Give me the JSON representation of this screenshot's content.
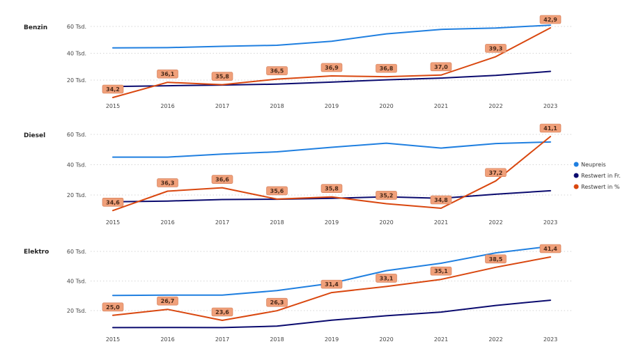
{
  "chart_data": [
    {
      "type": "line",
      "title": "Benzin",
      "categories": [
        "2015",
        "2016",
        "2017",
        "2018",
        "2019",
        "2020",
        "2021",
        "2022",
        "2023"
      ],
      "y_ticks": [
        "20 Tsd.",
        "40 Tsd.",
        "60 Tsd."
      ],
      "ylim": [
        0,
        66
      ],
      "series": [
        {
          "name": "Neupreis",
          "color": "#1f7fe0",
          "values": [
            44,
            44.2,
            45.2,
            46,
            49,
            54.5,
            57.8,
            58.8,
            61
          ]
        },
        {
          "name": "Restwert in Fr.",
          "color": "#0a0a6e",
          "values": [
            15.2,
            15.8,
            16.3,
            17,
            18.5,
            20.2,
            21.5,
            23.5,
            26.5
          ]
        },
        {
          "name": "Restwert in %",
          "color": "#d9470f",
          "values": [
            34.2,
            36.1,
            35.8,
            36.5,
            36.9,
            36.8,
            37.0,
            39.3,
            42.9
          ]
        }
      ],
      "data_labels": [
        "34,2",
        "36,1",
        "35,8",
        "36,5",
        "36,9",
        "36,8",
        "37,0",
        "39,3",
        "42,9"
      ]
    },
    {
      "type": "line",
      "title": "Diesel",
      "categories": [
        "2015",
        "2016",
        "2017",
        "2018",
        "2019",
        "2020",
        "2021",
        "2022",
        "2023"
      ],
      "y_ticks": [
        "20 Tsd.",
        "40 Tsd.",
        "60 Tsd."
      ],
      "ylim": [
        0,
        66
      ],
      "series": [
        {
          "name": "Neupreis",
          "color": "#1f7fe0",
          "values": [
            45,
            45,
            47,
            48.5,
            51.5,
            54.2,
            51,
            54,
            55
          ]
        },
        {
          "name": "Restwert in Fr.",
          "color": "#0a0a6e",
          "values": [
            15.5,
            16,
            17,
            17.2,
            17.8,
            18.8,
            17.8,
            20.5,
            22.8
          ]
        },
        {
          "name": "Restwert in %",
          "color": "#d9470f",
          "values": [
            34.6,
            36.3,
            36.6,
            35.6,
            35.8,
            35.2,
            34.8,
            37.2,
            41.1
          ]
        }
      ],
      "data_labels": [
        "34,6",
        "36,3",
        "36,6",
        "35,6",
        "35,8",
        "35,2",
        "34,8",
        "37,2",
        "41,1"
      ]
    },
    {
      "type": "line",
      "title": "Elektro",
      "categories": [
        "2015",
        "2016",
        "2017",
        "2018",
        "2019",
        "2020",
        "2021",
        "2022",
        "2023"
      ],
      "y_ticks": [
        "20 Tsd.",
        "40 Tsd.",
        "60 Tsd."
      ],
      "ylim": [
        0,
        66
      ],
      "series": [
        {
          "name": "Neupreis",
          "color": "#1f7fe0",
          "values": [
            30.2,
            30.5,
            30.5,
            33.5,
            38.5,
            47,
            52,
            59,
            63.5
          ]
        },
        {
          "name": "Restwert in Fr.",
          "color": "#0a0a6e",
          "values": [
            8.5,
            8.6,
            8.5,
            9.5,
            13.5,
            16.5,
            19,
            23.5,
            27
          ]
        },
        {
          "name": "Restwert in %",
          "color": "#d9470f",
          "values": [
            25.0,
            26.7,
            23.6,
            26.3,
            31.4,
            33.1,
            35.1,
            38.5,
            41.4
          ]
        }
      ],
      "data_labels": [
        "25,0",
        "26,7",
        "23,6",
        "26,3",
        "31,4",
        "33,1",
        "35,1",
        "38,5",
        "41,4"
      ]
    }
  ],
  "legend": {
    "placement": "right",
    "items": [
      {
        "label": "Neupreis",
        "color": "#1f7fe0"
      },
      {
        "label": "Restwert in Fr.",
        "color": "#0a0a6e"
      },
      {
        "label": "Restwert in %",
        "color": "#d9470f"
      }
    ]
  }
}
